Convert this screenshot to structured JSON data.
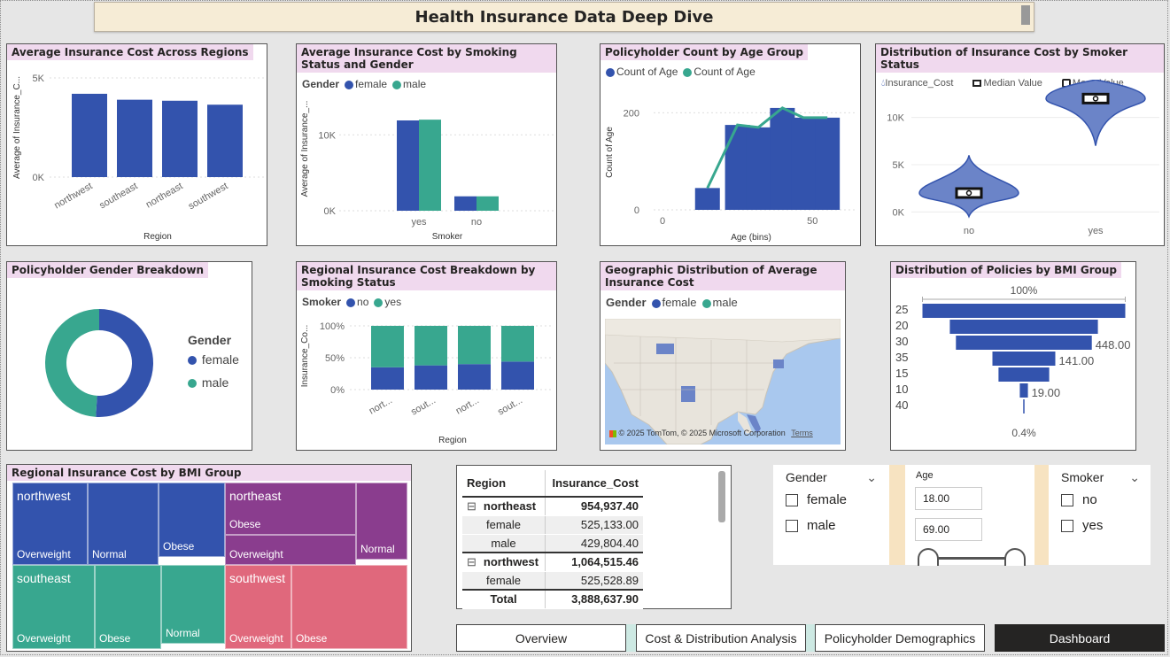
{
  "header": {
    "title": "Health Insurance Data Deep Dive"
  },
  "colors": {
    "blue": "#3353ad",
    "teal": "#38a78f",
    "purple": "#8a3d8e",
    "pink": "#e0687c",
    "title_bg": "#f0d9ee"
  },
  "cards": {
    "region_cost": {
      "title": "Average Insurance Cost Across Regions",
      "xlabel": "Region",
      "ylabel": "Average of Insurance_C...",
      "ticks": [
        "5K",
        "0K"
      ]
    },
    "smoke_gender": {
      "title": "Average Insurance Cost by Smoking Status and Gender",
      "legend_title": "Gender",
      "legend": [
        "female",
        "male"
      ],
      "xlabel": "Smoker",
      "ylabel": "Average of Insurance_...",
      "ticks": [
        "10K",
        "0K"
      ]
    },
    "age_group": {
      "title": "Policyholder Count by Age Group",
      "legend": [
        "Count of Age",
        "Count of Age"
      ],
      "xlabel": "Age (bins)",
      "ylabel": "Count of Age",
      "yticks": [
        "200",
        "0"
      ],
      "xticks": [
        "0",
        "50"
      ]
    },
    "violin": {
      "title": "Distribution of Insurance Cost by Smoker Status",
      "legend": [
        "Insurance_Cost",
        "Median Value",
        "Mean Value"
      ],
      "yticks": [
        "10K",
        "5K",
        "0K"
      ],
      "xticks": [
        "no",
        "yes"
      ]
    },
    "gender_donut": {
      "title": "Policyholder Gender Breakdown",
      "legend_title": "Gender",
      "legend": [
        "female",
        "male"
      ]
    },
    "stacked": {
      "title": "Regional Insurance Cost Breakdown by Smoking Status",
      "legend_title": "Smoker",
      "legend": [
        "no",
        "yes"
      ],
      "xlabel": "Region",
      "ylabel": "Insurance_Co...",
      "yticks": [
        "100%",
        "50%",
        "0%"
      ],
      "xticks": [
        "nort...",
        "sout...",
        "nort...",
        "sout..."
      ]
    },
    "map": {
      "title": "Geographic Distribution of Average Insurance Cost",
      "legend_title": "Gender",
      "legend": [
        "female",
        "male"
      ],
      "copyright": "© 2025 TomTom, © 2025 Microsoft Corporation",
      "terms": "Terms"
    },
    "bmi_funnel": {
      "title": "Distribution of Policies by BMI Group",
      "top_label": "100%",
      "bottom_label": "0.4%"
    },
    "treemap": {
      "title": "Regional Insurance Cost by BMI Group"
    }
  },
  "chart_data": [
    {
      "type": "bar",
      "title": "Average Insurance Cost Across Regions",
      "categories": [
        "northwest",
        "southeast",
        "northeast",
        "southwest"
      ],
      "values": [
        4200,
        3900,
        3850,
        3650
      ],
      "xlabel": "Region",
      "ylabel": "Average of Insurance_C...",
      "ylim": [
        0,
        5000
      ]
    },
    {
      "type": "bar",
      "title": "Average Insurance Cost by Smoking Status and Gender",
      "categories": [
        "yes",
        "no"
      ],
      "series": [
        {
          "name": "female",
          "values": [
            11900,
            1900
          ]
        },
        {
          "name": "male",
          "values": [
            12000,
            1900
          ]
        }
      ],
      "xlabel": "Smoker",
      "ylabel": "Average of Insurance_...",
      "ylim": [
        0,
        14000
      ]
    },
    {
      "type": "bar",
      "title": "Policyholder Count by Age Group",
      "x": [
        15,
        25,
        32,
        40,
        47,
        55
      ],
      "series": [
        {
          "name": "Count of Age",
          "values": [
            45,
            175,
            170,
            210,
            190,
            190
          ]
        },
        {
          "name": "Count of Age",
          "values": [
            45,
            175,
            170,
            210,
            190,
            190
          ]
        }
      ],
      "xlabel": "Age (bins)",
      "ylabel": "Count of Age",
      "xlim": [
        0,
        65
      ],
      "ylim": [
        0,
        250
      ]
    },
    {
      "type": "scatter",
      "title": "Distribution of Insurance Cost by Smoker Status",
      "categories": [
        "no",
        "yes"
      ],
      "medians": [
        2000,
        12000
      ],
      "means": [
        2000,
        12000
      ],
      "ylim": [
        -1000,
        14000
      ]
    },
    {
      "type": "pie",
      "title": "Policyholder Gender Breakdown",
      "categories": [
        "female",
        "male"
      ],
      "values": [
        51,
        49
      ]
    },
    {
      "type": "bar",
      "title": "Regional Insurance Cost Breakdown by Smoking Status",
      "categories": [
        "nort...",
        "sout...",
        "nort...",
        "sout..."
      ],
      "series": [
        {
          "name": "no",
          "values": [
            35,
            38,
            40,
            44
          ]
        },
        {
          "name": "yes",
          "values": [
            65,
            62,
            60,
            56
          ]
        }
      ],
      "ylim": [
        0,
        100
      ]
    },
    {
      "type": "bar",
      "title": "Distribution of Policies by BMI Group",
      "categories": [
        "25",
        "20",
        "30",
        "35",
        "15",
        "10",
        "40"
      ],
      "values": [
        100,
        73,
        67,
        31,
        25,
        4,
        0.4
      ],
      "data_labels": [
        "",
        "",
        "448.00",
        "141.00",
        "",
        "19.00",
        ""
      ]
    }
  ],
  "treemap_cells": [
    {
      "region": "northwest",
      "label": "Overweight",
      "color": "#3353ad"
    },
    {
      "region": "",
      "label": "Normal",
      "color": "#3353ad"
    },
    {
      "region": "",
      "label": "Obese",
      "color": "#3353ad"
    },
    {
      "region": "northeast",
      "label": "Obese",
      "color": "#8a3d8e"
    },
    {
      "region": "",
      "label": "Overweight",
      "color": "#8a3d8e"
    },
    {
      "region": "",
      "label": "Normal",
      "color": "#8a3d8e"
    },
    {
      "region": "southeast",
      "label": "Overweight",
      "color": "#38a78f"
    },
    {
      "region": "",
      "label": "Obese",
      "color": "#38a78f"
    },
    {
      "region": "",
      "label": "Normal",
      "color": "#38a78f"
    },
    {
      "region": "southwest",
      "label": "Overweight",
      "color": "#e0687c"
    },
    {
      "region": "",
      "label": "Obese",
      "color": "#e0687c"
    }
  ],
  "matrix": {
    "headers": [
      "Region",
      "Insurance_Cost"
    ],
    "rows": [
      {
        "label": "northeast",
        "value": "954,937.40",
        "level": 0,
        "expander": "⊟"
      },
      {
        "label": "female",
        "value": "525,133.00",
        "level": 1
      },
      {
        "label": "male",
        "value": "429,804.40",
        "level": 1
      },
      {
        "label": "northwest",
        "value": "1,064,515.46",
        "level": 0,
        "expander": "⊟"
      },
      {
        "label": "female",
        "value": "525,528.89",
        "level": 1
      }
    ],
    "total_label": "Total",
    "total_value": "3,888,637.90"
  },
  "slicers": {
    "gender": {
      "title": "Gender",
      "options": [
        "female",
        "male"
      ]
    },
    "age": {
      "title": "Age",
      "min": "18.00",
      "max": "69.00"
    },
    "smoker": {
      "title": "Smoker",
      "options": [
        "no",
        "yes"
      ]
    }
  },
  "nav": {
    "overview": "Overview",
    "cost": "Cost & Distribution Analysis",
    "demographics": "Policyholder Demographics",
    "dashboard": "Dashboard"
  }
}
